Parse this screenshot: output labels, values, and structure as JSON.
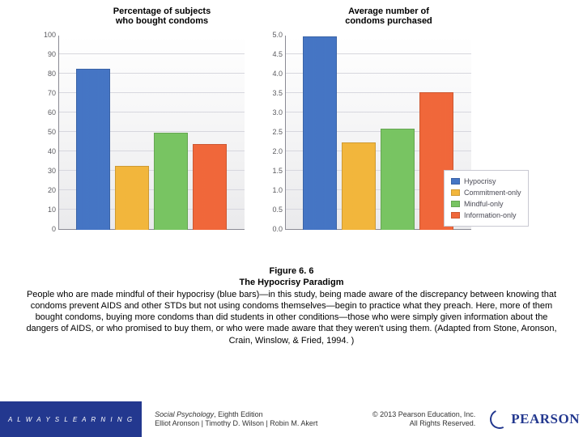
{
  "charts": {
    "panel_gap": 50,
    "panels": [
      {
        "title": "Percentage of subjects\nwho bought condoms",
        "ylim": [
          0,
          100
        ],
        "ytick_step": 10,
        "values": [
          83,
          33,
          50,
          44
        ],
        "bar_colors": [
          "#4575c4",
          "#f2b63c",
          "#78c462",
          "#f0673a"
        ]
      },
      {
        "title": "Average number of\ncondoms purchased",
        "ylim": [
          0,
          5.0
        ],
        "ytick_step": 0.5,
        "values": [
          4.98,
          2.25,
          2.6,
          3.55
        ],
        "bar_colors": [
          "#4575c4",
          "#f2b63c",
          "#78c462",
          "#f0673a"
        ]
      }
    ],
    "background_gradient": [
      "#ffffff",
      "#eaeaec"
    ],
    "grid_color": "#d7d7de",
    "axis_color": "#8a8a94",
    "tick_font_size": 9,
    "title_font_size": 11
  },
  "legend": {
    "items": [
      {
        "label": "Hypocrisy",
        "color": "#4575c4"
      },
      {
        "label": "Commitment-only",
        "color": "#f2b63c"
      },
      {
        "label": "Mindful-only",
        "color": "#78c462"
      },
      {
        "label": "Information-only",
        "color": "#f0673a"
      }
    ]
  },
  "caption": {
    "figure_number": "Figure 6. 6",
    "figure_title": "The Hypocrisy Paradigm",
    "body": "People who are made mindful of their hypocrisy (blue bars)—in this study, being made aware of the discrepancy between knowing that condoms prevent AIDS and other STDs but not using condoms themselves—begin to practice what they preach. Here, more of them bought condoms, buying more condoms than did students in other conditions—those who were simply given information about the dangers of AIDS, or who promised to buy them, or who were made aware that they weren't using them. (Adapted from Stone, Aronson, Crain, Winslow, & Fried, 1994. )"
  },
  "footer": {
    "always_learning": "A L W A Y S  L E A R N I N G",
    "book_title": "Social Psychology",
    "book_edition": ", Eighth Edition",
    "book_authors": "Elliot Aronson | Timothy D. Wilson | Robin M. Akert",
    "copyright_line1": "© 2013 Pearson Education, Inc.",
    "copyright_line2": "All Rights Reserved.",
    "brand": "PEARSON"
  }
}
